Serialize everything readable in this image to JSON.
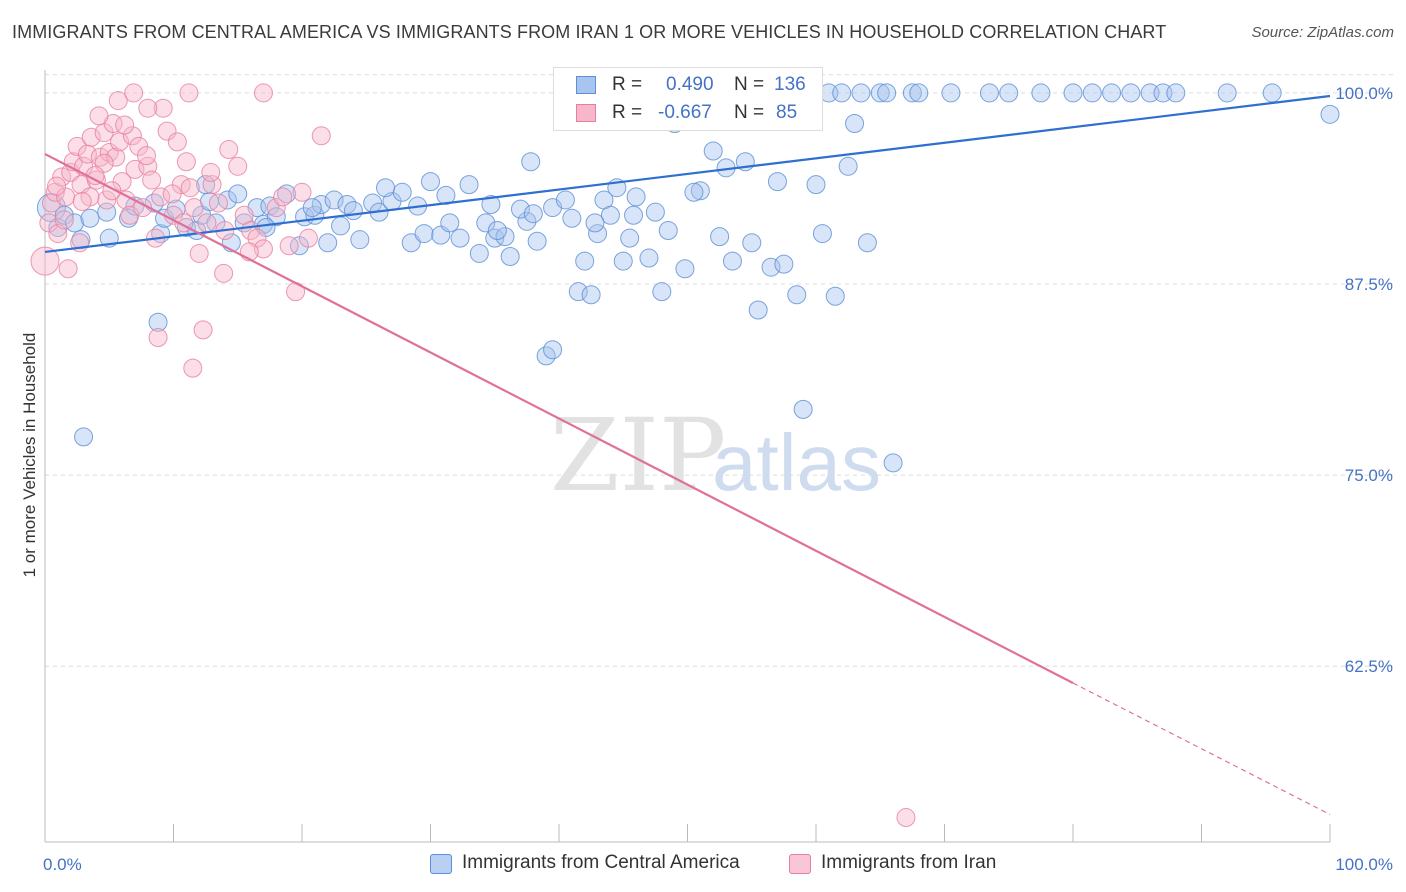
{
  "title": "IMMIGRANTS FROM CENTRAL AMERICA VS IMMIGRANTS FROM IRAN 1 OR MORE VEHICLES IN HOUSEHOLD CORRELATION CHART",
  "source": "Source: ZipAtlas.com",
  "watermark": {
    "zip": "ZIP",
    "atlas": "atlas"
  },
  "legend_top": {
    "rows": [
      {
        "r_label": "R =",
        "r_value": "0.490",
        "n_label": "N =",
        "n_value": "136"
      },
      {
        "r_label": "R =",
        "r_value": "-0.667",
        "n_label": "N =",
        "n_value": "85"
      }
    ]
  },
  "colors": {
    "blue_fill": "#a9c4ee",
    "blue_stroke": "#5b8fd6",
    "blue_line": "#2e6fd0",
    "pink_fill": "#f7b6c9",
    "pink_stroke": "#e77fa0",
    "pink_line": "#e0709a",
    "grid": "#dcdcdc",
    "tick_text": "#4472c4"
  },
  "chart_data": {
    "type": "scatter",
    "title": "IMMIGRANTS FROM CENTRAL AMERICA VS IMMIGRANTS FROM IRAN 1 OR MORE VEHICLES IN HOUSEHOLD CORRELATION CHART",
    "xlabel": "",
    "ylabel": "1 or more Vehicles in Household",
    "xlim": [
      0,
      100
    ],
    "ylim": [
      51,
      101.5
    ],
    "x_tick_labels": [
      "0.0%",
      "100.0%"
    ],
    "y_ticks": [
      62.5,
      75.0,
      87.5,
      100.0
    ],
    "y_tick_labels": [
      "62.5%",
      "75.0%",
      "87.5%",
      "100.0%"
    ],
    "grid": true,
    "legend_placement": "top-center",
    "series": [
      {
        "name": "Immigrants from Central America",
        "R": 0.49,
        "N": 136,
        "trend": {
          "x": [
            0,
            100
          ],
          "y": [
            89.6,
            99.8
          ]
        },
        "points": [
          [
            0.5,
            92.5
          ],
          [
            1.0,
            91.2
          ],
          [
            1.5,
            92.0
          ],
          [
            2.3,
            91.5
          ],
          [
            2.8,
            90.4
          ],
          [
            3.5,
            91.8
          ],
          [
            4.8,
            92.2
          ],
          [
            5.0,
            90.5
          ],
          [
            6.5,
            91.8
          ],
          [
            7.0,
            92.6
          ],
          [
            8.5,
            92.8
          ],
          [
            9.0,
            90.8
          ],
          [
            9.3,
            91.8
          ],
          [
            10.2,
            92.4
          ],
          [
            11.0,
            91.2
          ],
          [
            11.8,
            91.0
          ],
          [
            12.2,
            92.0
          ],
          [
            12.8,
            92.9
          ],
          [
            13.3,
            91.5
          ],
          [
            14.2,
            93.0
          ],
          [
            14.5,
            90.2
          ],
          [
            15.0,
            93.4
          ],
          [
            16.5,
            92.5
          ],
          [
            17.0,
            91.4
          ],
          [
            17.5,
            92.6
          ],
          [
            18.0,
            91.9
          ],
          [
            19.8,
            90.0
          ],
          [
            20.2,
            91.9
          ],
          [
            21.0,
            92.0
          ],
          [
            21.5,
            92.7
          ],
          [
            22.5,
            93.0
          ],
          [
            23.0,
            91.3
          ],
          [
            23.5,
            92.7
          ],
          [
            24.5,
            90.4
          ],
          [
            25.5,
            92.8
          ],
          [
            26.0,
            92.2
          ],
          [
            27.0,
            92.9
          ],
          [
            28.5,
            90.2
          ],
          [
            29.5,
            90.8
          ],
          [
            30.8,
            90.7
          ],
          [
            31.5,
            91.5
          ],
          [
            32.3,
            90.5
          ],
          [
            33.8,
            89.5
          ],
          [
            34.3,
            91.5
          ],
          [
            35.0,
            90.5
          ],
          [
            35.8,
            90.6
          ],
          [
            36.2,
            89.3
          ],
          [
            37.5,
            91.6
          ],
          [
            38.3,
            90.3
          ],
          [
            39.5,
            92.5
          ],
          [
            41.0,
            91.8
          ],
          [
            42.0,
            89.0
          ],
          [
            43.0,
            90.8
          ],
          [
            43.5,
            93.0
          ],
          [
            44.5,
            93.8
          ],
          [
            45.8,
            92.0
          ],
          [
            47.0,
            89.2
          ],
          [
            48.0,
            87.0
          ],
          [
            49.8,
            88.5
          ],
          [
            51.0,
            93.6
          ],
          [
            52.0,
            96.2
          ],
          [
            53.0,
            95.1
          ],
          [
            55.0,
            90.2
          ],
          [
            55.5,
            85.8
          ],
          [
            56.5,
            88.6
          ],
          [
            57.0,
            94.2
          ],
          [
            59.0,
            79.3
          ],
          [
            60.0,
            94.0
          ],
          [
            61.5,
            86.7
          ],
          [
            62.5,
            95.2
          ],
          [
            66.0,
            75.8
          ],
          [
            80.0,
            100.0
          ],
          [
            81.5,
            100.0
          ],
          [
            83.0,
            100.0
          ],
          [
            84.5,
            100.0
          ],
          [
            86.0,
            100.0
          ],
          [
            87.0,
            100.0
          ],
          [
            88.0,
            100.0
          ],
          [
            92.0,
            100.0
          ],
          [
            95.5,
            100.0
          ],
          [
            100.0,
            98.6
          ],
          [
            59.5,
            100.0
          ],
          [
            61.0,
            100.0
          ],
          [
            62.0,
            100.0
          ],
          [
            63.5,
            100.0
          ],
          [
            65.0,
            100.0
          ],
          [
            65.5,
            100.0
          ],
          [
            67.5,
            100.0
          ],
          [
            68.0,
            100.0
          ],
          [
            70.5,
            100.0
          ],
          [
            73.5,
            100.0
          ],
          [
            75.0,
            100.0
          ],
          [
            77.5,
            100.0
          ],
          [
            49.0,
            98.0
          ],
          [
            54.5,
            95.5
          ],
          [
            56.0,
            100.0
          ],
          [
            58.0,
            100.0
          ],
          [
            3.0,
            77.5
          ],
          [
            8.8,
            85.0
          ],
          [
            39.0,
            82.8
          ],
          [
            39.5,
            83.2
          ],
          [
            41.5,
            87.0
          ],
          [
            42.5,
            86.8
          ],
          [
            58.5,
            86.8
          ],
          [
            63.0,
            98.0
          ],
          [
            17.2,
            91.2
          ],
          [
            20.8,
            92.5
          ],
          [
            27.8,
            93.5
          ],
          [
            30.0,
            94.2
          ],
          [
            35.2,
            91.0
          ],
          [
            37.0,
            92.4
          ],
          [
            40.5,
            93.0
          ],
          [
            46.0,
            93.2
          ],
          [
            48.5,
            91.0
          ],
          [
            50.5,
            93.5
          ],
          [
            52.5,
            90.6
          ],
          [
            44.0,
            92.0
          ],
          [
            45.0,
            89.0
          ],
          [
            12.5,
            94.0
          ],
          [
            18.8,
            93.4
          ],
          [
            24.0,
            92.3
          ],
          [
            26.5,
            93.8
          ],
          [
            29.0,
            92.6
          ],
          [
            33.0,
            94.0
          ],
          [
            34.7,
            92.7
          ],
          [
            38.0,
            92.1
          ],
          [
            42.8,
            91.5
          ],
          [
            47.5,
            92.2
          ],
          [
            53.5,
            89.0
          ],
          [
            57.5,
            88.8
          ],
          [
            60.5,
            90.8
          ],
          [
            64.0,
            90.2
          ],
          [
            45.5,
            90.5
          ],
          [
            37.8,
            95.5
          ],
          [
            31.2,
            93.3
          ],
          [
            22.0,
            90.2
          ],
          [
            15.5,
            91.5
          ]
        ],
        "point_sizes_note": "larger bubbles at x=0.5,y=92.5 and x=3.0,y=77.5"
      },
      {
        "name": "Immigrants from Iran",
        "R": -0.667,
        "N": 85,
        "trend": {
          "x": [
            0,
            80
          ],
          "y": [
            96.0,
            61.4
          ]
        },
        "trend_dashed": {
          "x": [
            80,
            100
          ],
          "y": [
            61.4,
            52.8
          ]
        },
        "points": [
          [
            0.0,
            89.0
          ],
          [
            0.3,
            91.5
          ],
          [
            0.5,
            92.8
          ],
          [
            0.8,
            93.5
          ],
          [
            1.0,
            90.8
          ],
          [
            1.3,
            94.5
          ],
          [
            1.6,
            93.2
          ],
          [
            2.0,
            94.8
          ],
          [
            2.2,
            95.5
          ],
          [
            2.5,
            96.5
          ],
          [
            2.8,
            94.0
          ],
          [
            3.0,
            95.2
          ],
          [
            3.3,
            96.0
          ],
          [
            3.6,
            97.1
          ],
          [
            4.0,
            94.3
          ],
          [
            4.3,
            95.8
          ],
          [
            4.6,
            97.4
          ],
          [
            4.8,
            93.0
          ],
          [
            5.0,
            96.1
          ],
          [
            5.3,
            98.0
          ],
          [
            5.5,
            95.8
          ],
          [
            5.8,
            96.8
          ],
          [
            6.0,
            94.2
          ],
          [
            6.3,
            93.0
          ],
          [
            6.6,
            92.0
          ],
          [
            6.8,
            97.2
          ],
          [
            7.0,
            95.0
          ],
          [
            7.3,
            96.5
          ],
          [
            7.6,
            92.5
          ],
          [
            8.0,
            95.2
          ],
          [
            8.3,
            94.3
          ],
          [
            8.6,
            90.5
          ],
          [
            8.8,
            84.0
          ],
          [
            9.0,
            93.2
          ],
          [
            9.5,
            97.5
          ],
          [
            10.0,
            92.0
          ],
          [
            10.3,
            96.8
          ],
          [
            10.6,
            94.0
          ],
          [
            10.8,
            91.5
          ],
          [
            11.0,
            95.5
          ],
          [
            11.3,
            93.8
          ],
          [
            11.6,
            92.5
          ],
          [
            12.0,
            89.5
          ],
          [
            12.3,
            84.5
          ],
          [
            12.6,
            91.5
          ],
          [
            13.0,
            94.0
          ],
          [
            13.5,
            92.8
          ],
          [
            14.0,
            91.0
          ],
          [
            14.3,
            96.3
          ],
          [
            15.0,
            95.2
          ],
          [
            15.5,
            92.0
          ],
          [
            16.0,
            91.0
          ],
          [
            16.5,
            90.5
          ],
          [
            17.0,
            89.8
          ],
          [
            18.0,
            92.5
          ],
          [
            18.5,
            93.2
          ],
          [
            19.0,
            90.0
          ],
          [
            19.5,
            87.0
          ],
          [
            20.0,
            93.5
          ],
          [
            20.5,
            90.5
          ],
          [
            21.5,
            97.2
          ],
          [
            3.5,
            93.2
          ],
          [
            4.2,
            98.5
          ],
          [
            5.7,
            99.5
          ],
          [
            6.9,
            100.0
          ],
          [
            9.2,
            99.0
          ],
          [
            11.2,
            100.0
          ],
          [
            17.0,
            100.0
          ],
          [
            1.8,
            88.5
          ],
          [
            2.7,
            90.2
          ],
          [
            11.5,
            82.0
          ],
          [
            8.0,
            99.0
          ],
          [
            6.2,
            97.9
          ],
          [
            4.6,
            95.4
          ],
          [
            2.9,
            92.9
          ],
          [
            1.5,
            91.7
          ],
          [
            0.9,
            93.9
          ],
          [
            3.9,
            94.6
          ],
          [
            7.9,
            95.9
          ],
          [
            9.9,
            93.4
          ],
          [
            12.9,
            94.8
          ],
          [
            13.9,
            88.2
          ],
          [
            15.9,
            89.6
          ],
          [
            67.0,
            52.6
          ],
          [
            5.2,
            93.6
          ]
        ],
        "point_sizes_note": "large bubbles near x=0,y=89"
      }
    ]
  },
  "bottom_legend": [
    {
      "label": "Immigrants from Central America"
    },
    {
      "label": "Immigrants from Iran"
    }
  ]
}
